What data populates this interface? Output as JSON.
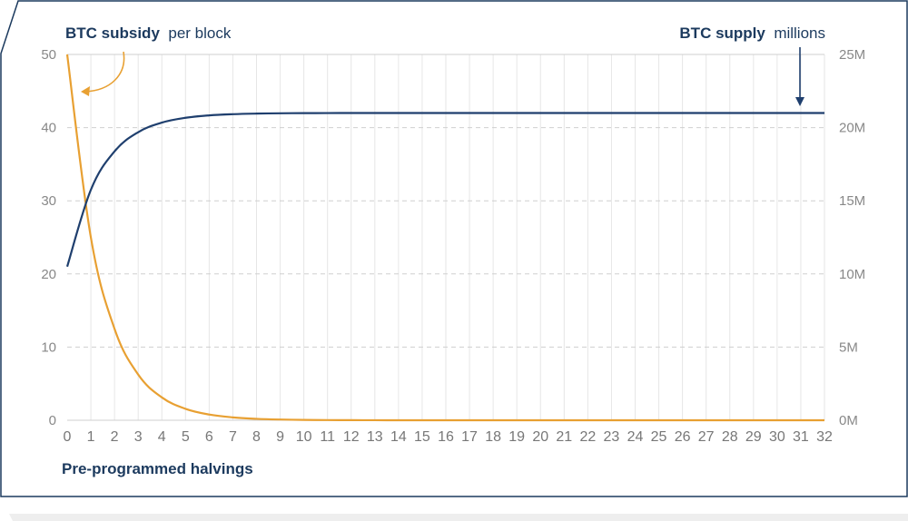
{
  "chart_data": {
    "type": "line",
    "title": "",
    "xlabel": "Pre-programmed halvings",
    "left_axis_label": {
      "strong": "BTC subsidy",
      "light": "per block"
    },
    "right_axis_label": {
      "strong": "BTC supply",
      "light": "millions"
    },
    "x": [
      0,
      1,
      2,
      3,
      4,
      5,
      6,
      7,
      8,
      9,
      10,
      11,
      12,
      13,
      14,
      15,
      16,
      17,
      18,
      19,
      20,
      21,
      22,
      23,
      24,
      25,
      26,
      27,
      28,
      29,
      30,
      31,
      32
    ],
    "x_tick_labels": [
      "0",
      "1",
      "2",
      "3",
      "4",
      "5",
      "6",
      "7",
      "8",
      "9",
      "10",
      "11",
      "12",
      "13",
      "14",
      "15",
      "16",
      "17",
      "18",
      "19",
      "20",
      "21",
      "22",
      "23",
      "24",
      "25",
      "26",
      "27",
      "28",
      "29",
      "30",
      "31",
      "32"
    ],
    "ylim_left": [
      0,
      50
    ],
    "y_ticks_left": [
      "0",
      "10",
      "20",
      "30",
      "40",
      "50"
    ],
    "ylim_right": [
      0,
      25
    ],
    "y_ticks_right": [
      "0M",
      "5M",
      "10M",
      "15M",
      "20M",
      "25M"
    ],
    "grid": true,
    "series": [
      {
        "name": "BTC subsidy",
        "axis": "left",
        "color": "#e8a032",
        "values": [
          50,
          25,
          12.5,
          6.25,
          3.125,
          1.5625,
          0.78125,
          0.390625,
          0.1953125,
          0.09765625,
          0.048828125,
          0.0244140625,
          0.01220703125,
          0.006103515625,
          0.0030517578125,
          0.00152587890625,
          0.000762939453125,
          0.0003814697265625,
          0.00019073486328125,
          9.5367431640625e-05,
          4.76837158203125e-05,
          2.384185791015625e-05,
          1.1920928955078125e-05,
          5.9604644775390625e-06,
          2.9802322387695312e-06,
          1.4901161193847656e-06,
          7.450580596923828e-07,
          3.725290298461914e-07,
          1.862645149230957e-07,
          9.313225746154785e-08,
          4.6566128730773926e-08,
          2.3283064365386963e-08,
          0
        ]
      },
      {
        "name": "BTC supply",
        "axis": "right",
        "color": "#1f3f6e",
        "values": [
          10.5,
          15.75,
          18.375,
          19.6875,
          20.34375,
          20.671875,
          20.8359375,
          20.91796875,
          20.958984375,
          20.9794921875,
          20.98974609375,
          20.994873046875,
          20.9974365234375,
          20.99871826171875,
          20.999359130859375,
          20.999679565429688,
          20.999839782714844,
          20.999919891357422,
          20.99995994567871,
          20.999979972839355,
          20.999989986419678,
          20.99999499320984,
          20.99999749660492,
          20.99999874830246,
          20.99999937415123,
          20.999999687075615,
          20.999999843537807,
          20.999999921768904,
          20.999999960884452,
          20.999999980442226,
          20.999999990221113,
          20.999999995110556,
          21
        ]
      }
    ]
  },
  "colors": {
    "frame": "#1c3a5e",
    "subsidy": "#e8a032",
    "supply": "#1f3f6e",
    "grid": "#cfcfcf"
  }
}
